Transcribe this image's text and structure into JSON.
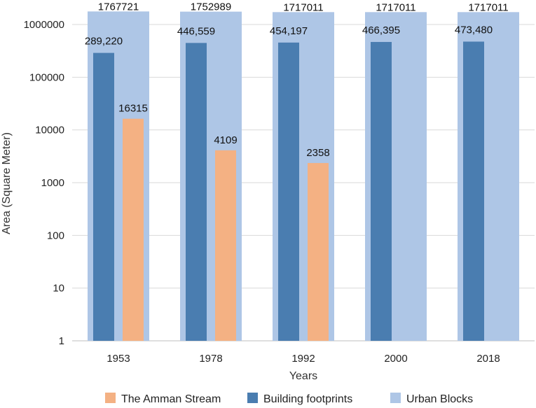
{
  "chart_data": {
    "type": "bar",
    "yscale": "log",
    "categories": [
      "1953",
      "1978",
      "1992",
      "2000",
      "2018"
    ],
    "ylim": [
      1,
      1000000
    ],
    "yticks": [
      "1",
      "10",
      "100",
      "1000",
      "10000",
      "100000",
      "1000000"
    ],
    "xlabel": "Years",
    "ylabel": "Area (Square Meter)",
    "series": [
      {
        "name": "Urban Blocks",
        "color": "#aec6e6",
        "values": [
          1767721,
          1752989,
          1717011,
          1717011,
          1717011
        ],
        "labels": [
          "1767721",
          "1752989",
          "1717011",
          "1717011",
          "1717011"
        ]
      },
      {
        "name": "Building footprints",
        "color": "#4a7db0",
        "values": [
          289220,
          446559,
          454197,
          466395,
          473480
        ],
        "labels": [
          "289,220",
          "446,559",
          "454,197",
          "466,395",
          "473,480"
        ]
      },
      {
        "name": "The Amman Stream",
        "color": "#f4b183",
        "values": [
          16315,
          4109,
          2358,
          null,
          null
        ],
        "labels": [
          "16315",
          "4109",
          "2358",
          "",
          ""
        ]
      }
    ],
    "legend": [
      {
        "name": "The Amman Stream",
        "color": "#f4b183"
      },
      {
        "name": "Building footprints",
        "color": "#4a7db0"
      },
      {
        "name": "Urban Blocks",
        "color": "#aec6e6"
      }
    ],
    "legend_position": "bottom",
    "grid": true
  }
}
